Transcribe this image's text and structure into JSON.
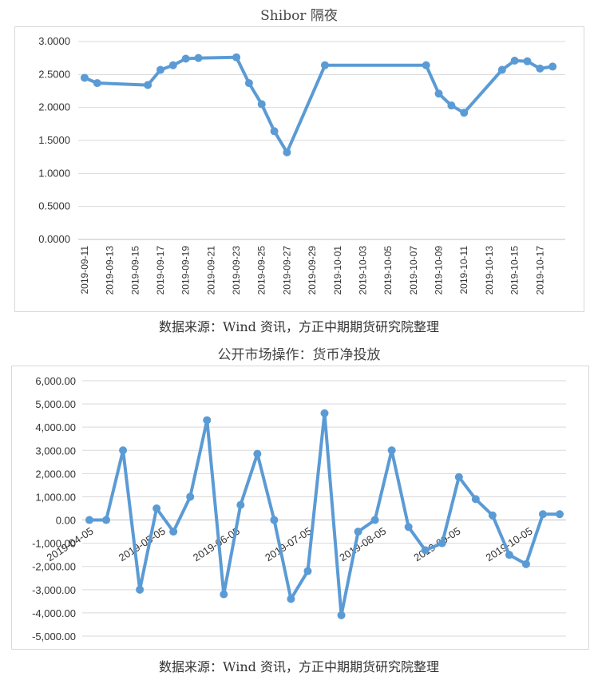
{
  "colors": {
    "series": "#5b9bd5",
    "grid": "#d9d9d9",
    "axis_text": "#333333"
  },
  "chart_data": [
    {
      "type": "line",
      "title": "Shibor 隔夜",
      "source": "数据来源：Wind 资讯，方正中期期货研究院整理",
      "xlabel": "",
      "ylabel": "",
      "ylim": [
        0,
        3
      ],
      "grid": true,
      "legend": "none",
      "y_ticks": [
        "3.0000",
        "2.5000",
        "2.0000",
        "1.5000",
        "1.0000",
        "0.5000",
        "0.0000"
      ],
      "x_tick_labels": [
        "2019-09-11",
        "2019-09-13",
        "2019-09-15",
        "2019-09-17",
        "2019-09-19",
        "2019-09-21",
        "2019-09-23",
        "2019-09-25",
        "2019-09-27",
        "2019-09-29",
        "2019-10-01",
        "2019-10-03",
        "2019-10-05",
        "2019-10-07",
        "2019-10-09",
        "2019-10-11",
        "2019-10-13",
        "2019-10-15",
        "2019-10-17"
      ],
      "x": [
        "2019-09-11",
        "2019-09-12",
        "2019-09-16",
        "2019-09-17",
        "2019-09-18",
        "2019-09-19",
        "2019-09-20",
        "2019-09-23",
        "2019-09-24",
        "2019-09-25",
        "2019-09-26",
        "2019-09-27",
        "2019-09-30",
        "2019-10-08",
        "2019-10-09",
        "2019-10-10",
        "2019-10-11",
        "2019-10-14",
        "2019-10-15",
        "2019-10-16",
        "2019-10-17",
        "2019-10-18"
      ],
      "values": [
        2.45,
        2.37,
        2.34,
        2.57,
        2.64,
        2.74,
        2.75,
        2.76,
        2.37,
        2.05,
        1.64,
        1.32,
        2.64,
        2.64,
        2.21,
        2.03,
        1.92,
        2.57,
        2.71,
        2.7,
        2.59,
        2.62
      ]
    },
    {
      "type": "line",
      "title": "公开市场操作：货币净投放",
      "source": "数据来源：Wind 资讯，方正中期期货研究院整理",
      "xlabel": "",
      "ylabel": "",
      "ylim": [
        -5000,
        6000
      ],
      "grid": true,
      "legend": "none",
      "y_ticks": [
        "6,000.00",
        "5,000.00",
        "4,000.00",
        "3,000.00",
        "2,000.00",
        "1,000.00",
        "0.00",
        "-1,000.00",
        "-2,000.00",
        "-3,000.00",
        "-4,000.00",
        "-5,000.00"
      ],
      "x_tick_labels": [
        "2019-04-05",
        "2019-05-05",
        "2019-06-05",
        "2019-07-05",
        "2019-08-05",
        "2019-09-05",
        "2019-10-05"
      ],
      "x": [
        "2019-04-05",
        "2019-04-12",
        "2019-04-19",
        "2019-04-26",
        "2019-05-03",
        "2019-05-10",
        "2019-05-17",
        "2019-05-24",
        "2019-05-31",
        "2019-06-07",
        "2019-06-14",
        "2019-06-21",
        "2019-06-28",
        "2019-07-05",
        "2019-07-12",
        "2019-07-19",
        "2019-07-26",
        "2019-08-02",
        "2019-08-09",
        "2019-08-16",
        "2019-08-23",
        "2019-08-30",
        "2019-09-06",
        "2019-09-13",
        "2019-09-20",
        "2019-09-27",
        "2019-10-04",
        "2019-10-11",
        "2019-10-18"
      ],
      "values": [
        0,
        0,
        3000,
        -3000,
        500,
        -500,
        1000,
        4300,
        -3200,
        650,
        2850,
        0,
        -3400,
        -2200,
        4600,
        -4100,
        -500,
        0,
        3000,
        -300,
        -1300,
        -1000,
        1850,
        900,
        200,
        -1500,
        -1900,
        250,
        250
      ]
    }
  ]
}
